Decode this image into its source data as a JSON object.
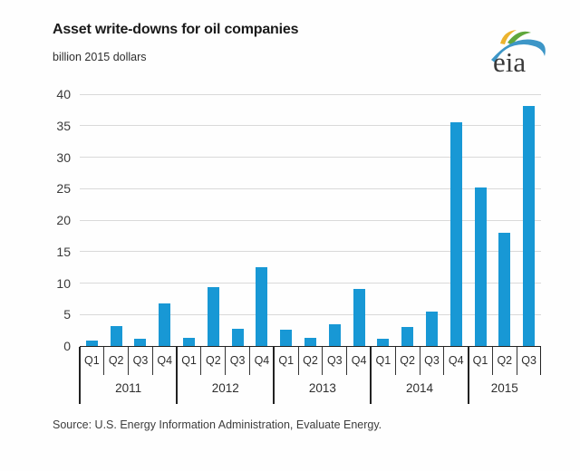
{
  "header": {
    "title": "Asset write-downs for oil companies",
    "subtitle": "billion 2015 dollars"
  },
  "logo": {
    "name": "eia-logo",
    "text": "eia",
    "colors": {
      "blue": "#3d96c7",
      "green": "#5fa73c",
      "yellow": "#ecb32e",
      "text": "#3a3a3a"
    }
  },
  "source_note": "Source:  U.S. Energy Information Administration, Evaluate Energy.",
  "chart_data": {
    "type": "bar",
    "title": "Asset write-downs for oil companies",
    "ylabel": "billion 2015 dollars",
    "xlabel": "",
    "ylim": [
      0,
      40
    ],
    "yticks": [
      0,
      5,
      10,
      15,
      20,
      25,
      30,
      35,
      40
    ],
    "grid": true,
    "legend": "none",
    "bar_color": "#1898d5",
    "categories": [
      "Q1",
      "Q2",
      "Q3",
      "Q4",
      "Q1",
      "Q2",
      "Q3",
      "Q4",
      "Q1",
      "Q2",
      "Q3",
      "Q4",
      "Q1",
      "Q2",
      "Q3",
      "Q4",
      "Q1",
      "Q2",
      "Q3"
    ],
    "values": [
      0.8,
      3.1,
      1.2,
      6.8,
      1.3,
      9.4,
      2.8,
      12.5,
      2.6,
      1.3,
      3.4,
      9.1,
      1.2,
      3.0,
      5.5,
      35.6,
      25.2,
      18.0,
      38.1
    ],
    "year_groups": [
      {
        "label": "2011",
        "quarters": [
          "Q1",
          "Q2",
          "Q3",
          "Q4"
        ],
        "values": [
          0.8,
          3.1,
          1.2,
          6.8
        ]
      },
      {
        "label": "2012",
        "quarters": [
          "Q1",
          "Q2",
          "Q3",
          "Q4"
        ],
        "values": [
          1.3,
          9.4,
          2.8,
          12.5
        ]
      },
      {
        "label": "2013",
        "quarters": [
          "Q1",
          "Q2",
          "Q3",
          "Q4"
        ],
        "values": [
          2.6,
          1.3,
          3.4,
          9.1
        ]
      },
      {
        "label": "2014",
        "quarters": [
          "Q1",
          "Q2",
          "Q3",
          "Q4"
        ],
        "values": [
          1.2,
          3.0,
          5.5,
          35.6
        ]
      },
      {
        "label": "2015",
        "quarters": [
          "Q1",
          "Q2",
          "Q3"
        ],
        "values": [
          25.2,
          18.0,
          38.1
        ]
      }
    ]
  }
}
